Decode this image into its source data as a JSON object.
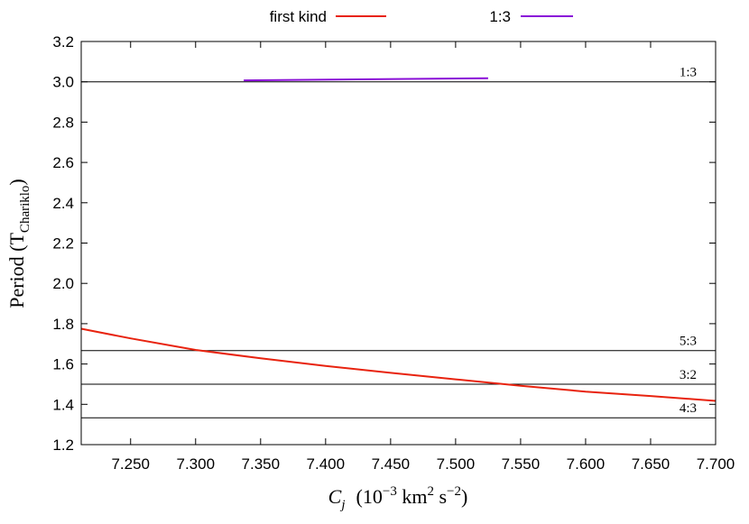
{
  "chart_data": {
    "type": "line",
    "xlim": [
      7.212,
      7.7
    ],
    "ylim": [
      1.2,
      3.2
    ],
    "x_ticks": [
      7.25,
      7.3,
      7.35,
      7.4,
      7.45,
      7.5,
      7.55,
      7.6,
      7.65,
      7.7
    ],
    "x_tick_labels": [
      "7.250",
      "7.300",
      "7.350",
      "7.400",
      "7.450",
      "7.500",
      "7.550",
      "7.600",
      "7.650",
      "7.700"
    ],
    "y_ticks": [
      1.2,
      1.4,
      1.6,
      1.8,
      2.0,
      2.2,
      2.4,
      2.6,
      2.8,
      3.0,
      3.2
    ],
    "y_tick_labels": [
      "1.2",
      "1.4",
      "1.6",
      "1.8",
      "2.0",
      "2.2",
      "2.4",
      "2.6",
      "2.8",
      "3.0",
      "3.2"
    ],
    "xlabel": {
      "main": "C",
      "sub": "j",
      "units_pre": "(10",
      "exp1": "−3",
      "units_mid": " km",
      "exp2": "2",
      "units_mid2": " s",
      "exp3": "−2",
      "units_post": ")"
    },
    "ylabel": {
      "main": "Period (T",
      "sub": "Chariklo",
      "post": ")"
    },
    "legend_position": "top",
    "grid": false,
    "series": [
      {
        "name": "first kind",
        "color": "#e8230f",
        "x": [
          7.212,
          7.25,
          7.3,
          7.35,
          7.4,
          7.45,
          7.5,
          7.55,
          7.6,
          7.65,
          7.7
        ],
        "y": [
          1.775,
          1.727,
          1.67,
          1.628,
          1.59,
          1.556,
          1.524,
          1.492,
          1.463,
          1.441,
          1.417
        ]
      },
      {
        "name": "1:3",
        "color": "#8a0fd8",
        "x": [
          7.337,
          7.525
        ],
        "y": [
          3.007,
          3.018
        ]
      }
    ],
    "resonances": [
      {
        "label": "1:3",
        "y": 3.0
      },
      {
        "label": "5:3",
        "y": 1.6667
      },
      {
        "label": "3:2",
        "y": 1.5
      },
      {
        "label": "4:3",
        "y": 1.3333
      }
    ]
  }
}
